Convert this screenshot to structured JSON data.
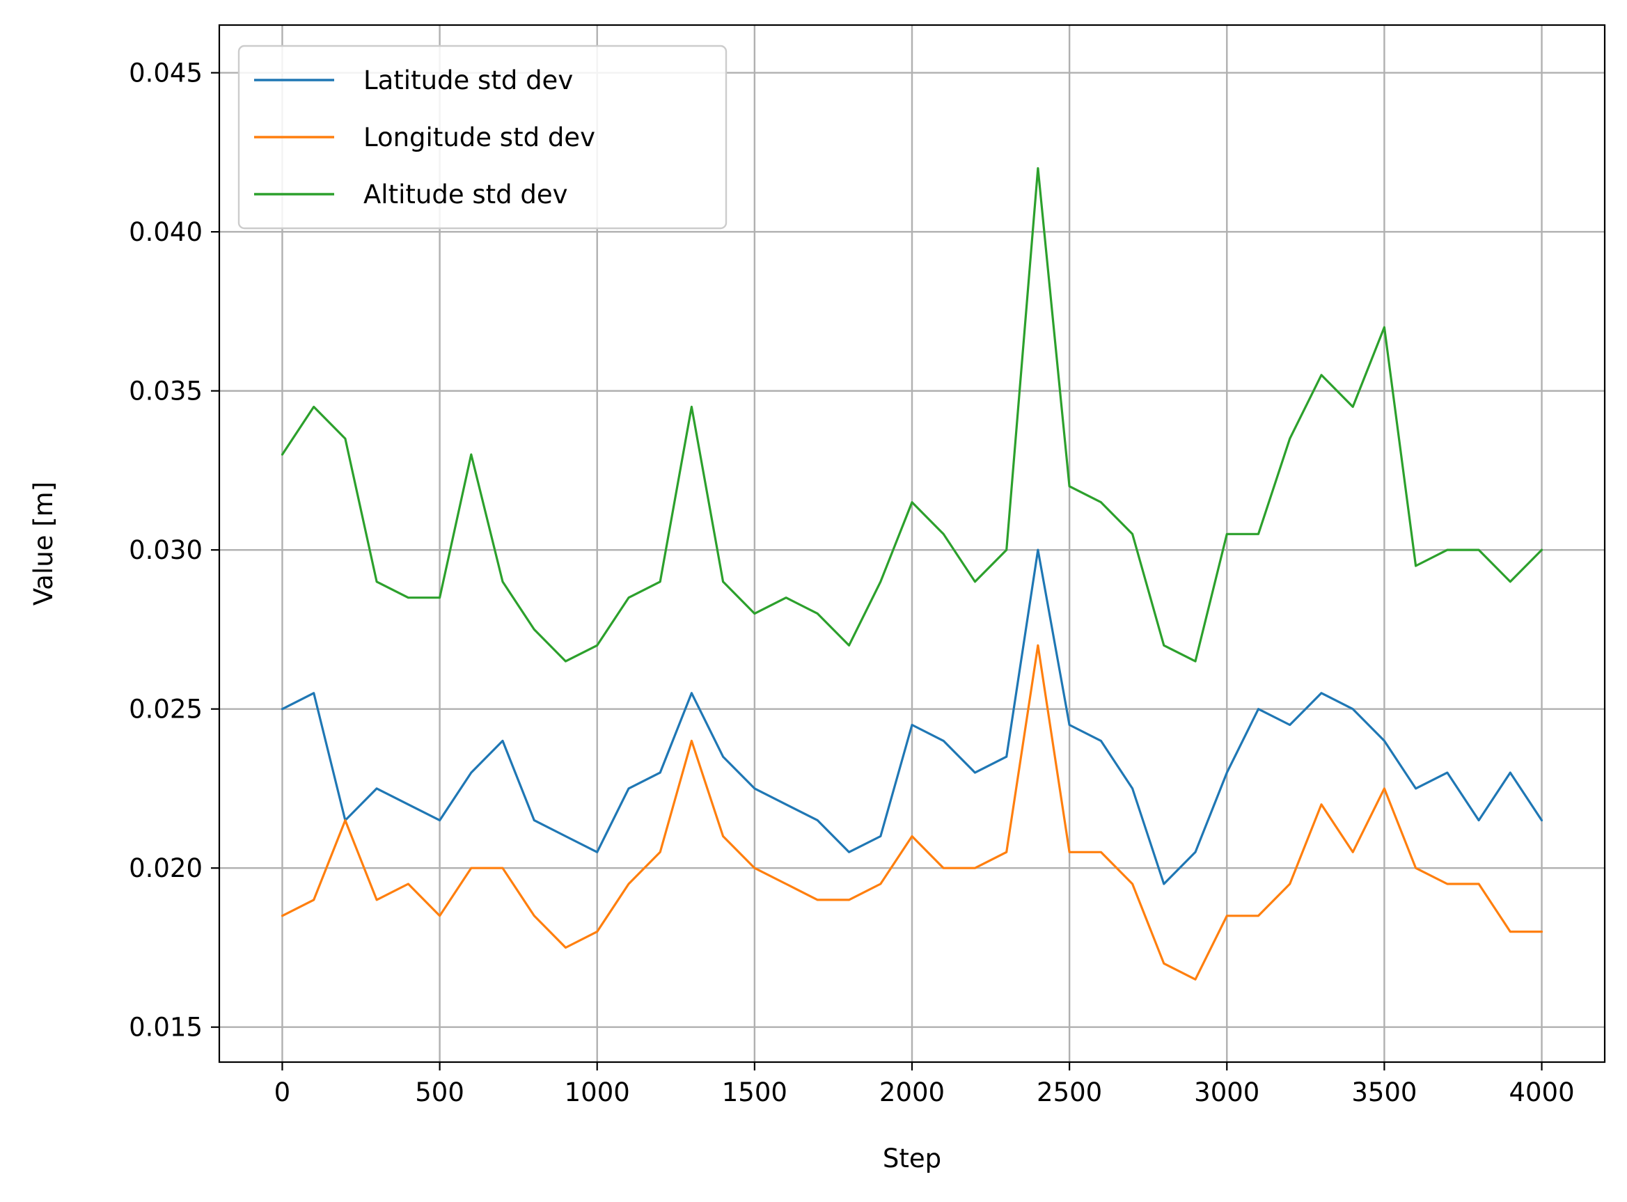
{
  "chart_data": {
    "type": "line",
    "title": "",
    "xlabel": "Step",
    "ylabel": "Value [m]",
    "xlim": [
      -200,
      4200
    ],
    "ylim": [
      0.0139,
      0.0465
    ],
    "xticks": [
      0,
      500,
      1000,
      1500,
      2000,
      2500,
      3000,
      3500,
      4000
    ],
    "xtick_labels": [
      "0",
      "500",
      "1000",
      "1500",
      "2000",
      "2500",
      "3000",
      "3500",
      "4000"
    ],
    "yticks": [
      0.015,
      0.02,
      0.025,
      0.03,
      0.035,
      0.04,
      0.045
    ],
    "ytick_labels": [
      "0.015",
      "0.020",
      "0.025",
      "0.030",
      "0.035",
      "0.040",
      "0.045"
    ],
    "grid": true,
    "legend_position": "top-left",
    "x": [
      0,
      100,
      200,
      300,
      400,
      500,
      600,
      700,
      800,
      900,
      1000,
      1100,
      1200,
      1300,
      1400,
      1500,
      1600,
      1700,
      1800,
      1900,
      2000,
      2100,
      2200,
      2300,
      2400,
      2500,
      2600,
      2700,
      2800,
      2900,
      3000,
      3100,
      3200,
      3300,
      3400,
      3500,
      3600,
      3700,
      3800,
      3900,
      4000
    ],
    "series": [
      {
        "name": "Latitude std dev",
        "color": "#1f77b4",
        "values": [
          0.025,
          0.0255,
          0.0215,
          0.0225,
          0.022,
          0.0215,
          0.023,
          0.024,
          0.0215,
          0.021,
          0.0205,
          0.0225,
          0.023,
          0.0255,
          0.0235,
          0.0225,
          0.022,
          0.0215,
          0.0205,
          0.021,
          0.0245,
          0.024,
          0.023,
          0.0235,
          0.03,
          0.0245,
          0.024,
          0.0225,
          0.0195,
          0.0205,
          0.023,
          0.025,
          0.0245,
          0.0255,
          0.025,
          0.024,
          0.0225,
          0.023,
          0.0215,
          0.023,
          0.0215
        ]
      },
      {
        "name": "Longitude std dev",
        "color": "#ff7f0e",
        "values": [
          0.0185,
          0.019,
          0.0215,
          0.019,
          0.0195,
          0.0185,
          0.02,
          0.02,
          0.0185,
          0.0175,
          0.018,
          0.0195,
          0.0205,
          0.024,
          0.021,
          0.02,
          0.0195,
          0.019,
          0.019,
          0.0195,
          0.021,
          0.02,
          0.02,
          0.0205,
          0.027,
          0.0205,
          0.0205,
          0.0195,
          0.017,
          0.0165,
          0.0185,
          0.0185,
          0.0195,
          0.022,
          0.0205,
          0.0225,
          0.02,
          0.0195,
          0.0195,
          0.018,
          0.018
        ]
      },
      {
        "name": "Altitude std dev",
        "color": "#2ca02c",
        "values": [
          0.033,
          0.0345,
          0.0335,
          0.029,
          0.0285,
          0.0285,
          0.033,
          0.029,
          0.0275,
          0.0265,
          0.027,
          0.0285,
          0.029,
          0.0345,
          0.029,
          0.028,
          0.0285,
          0.028,
          0.027,
          0.029,
          0.0315,
          0.0305,
          0.029,
          0.03,
          0.042,
          0.032,
          0.0315,
          0.0305,
          0.027,
          0.0265,
          0.0305,
          0.0305,
          0.0335,
          0.0355,
          0.0345,
          0.037,
          0.0295,
          0.03,
          0.03,
          0.029,
          0.03
        ]
      }
    ]
  }
}
